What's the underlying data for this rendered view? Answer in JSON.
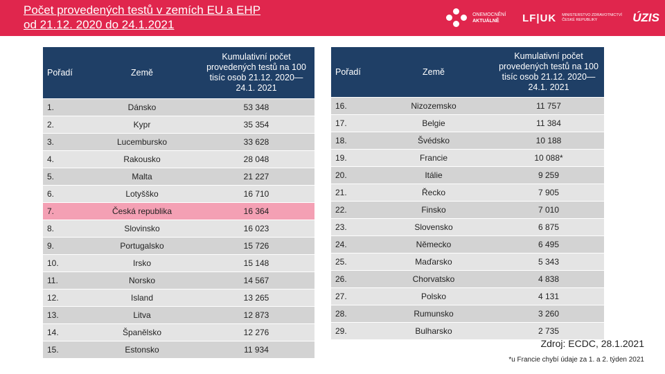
{
  "header": {
    "title_line1": "Počet provedených testů v zemích EU a EHP",
    "title_line2": "od 21.12. 2020 do 24.1.2021",
    "logos": {
      "logo1_line1": "ONEMOCNĚNÍ",
      "logo1_line2": "AKTUÁLNĚ",
      "logo2": "LF|UK",
      "logo3_line1": "MINISTERSTVO ZDRAVOTNICTVÍ",
      "logo3_line2": "ČESKÉ REPUBLIKY",
      "logo4": "ÚZIS"
    }
  },
  "table": {
    "headers": {
      "rank": "Pořadí",
      "country": "Země",
      "value": "Kumulativní počet provedených testů na 100 tisíc osob 21.12. 2020—24.1. 2021"
    },
    "left_rows": [
      {
        "rank": "1.",
        "country": "Dánsko",
        "value": "53 348"
      },
      {
        "rank": "2.",
        "country": "Kypr",
        "value": "35 354"
      },
      {
        "rank": "3.",
        "country": "Lucembursko",
        "value": "33 628"
      },
      {
        "rank": "4.",
        "country": "Rakousko",
        "value": "28 048"
      },
      {
        "rank": "5.",
        "country": "Malta",
        "value": "21 227"
      },
      {
        "rank": "6.",
        "country": "Lotyšško",
        "value": "16 710"
      },
      {
        "rank": "7.",
        "country": "Česká republika",
        "value": "16 364"
      },
      {
        "rank": "8.",
        "country": "Slovinsko",
        "value": "16 023"
      },
      {
        "rank": "9.",
        "country": "Portugalsko",
        "value": "15 726"
      },
      {
        "rank": "10.",
        "country": "Irsko",
        "value": "15 148"
      },
      {
        "rank": "11.",
        "country": "Norsko",
        "value": "14 567"
      },
      {
        "rank": "12.",
        "country": "Island",
        "value": "13 265"
      },
      {
        "rank": "13.",
        "country": "Litva",
        "value": "12 873"
      },
      {
        "rank": "14.",
        "country": "Španělsko",
        "value": "12 276"
      },
      {
        "rank": "15.",
        "country": "Estonsko",
        "value": "11 934"
      }
    ],
    "right_rows": [
      {
        "rank": "16.",
        "country": "Nizozemsko",
        "value": "11 757"
      },
      {
        "rank": "17.",
        "country": "Belgie",
        "value": "11 384"
      },
      {
        "rank": "18.",
        "country": "Švédsko",
        "value": "10 188"
      },
      {
        "rank": "19.",
        "country": "Francie",
        "value": "10 088*"
      },
      {
        "rank": "20.",
        "country": "Itálie",
        "value": "9 259"
      },
      {
        "rank": "21.",
        "country": "Řecko",
        "value": "7 905"
      },
      {
        "rank": "22.",
        "country": "Finsko",
        "value": "7 010"
      },
      {
        "rank": "23.",
        "country": "Slovensko",
        "value": "6 875"
      },
      {
        "rank": "24.",
        "country": "Německo",
        "value": "6 495"
      },
      {
        "rank": "25.",
        "country": "Maďarsko",
        "value": "5 343"
      },
      {
        "rank": "26.",
        "country": "Chorvatsko",
        "value": "4 838"
      },
      {
        "rank": "27.",
        "country": "Polsko",
        "value": "4 131"
      },
      {
        "rank": "28.",
        "country": "Rumunsko",
        "value": "3 260"
      },
      {
        "rank": "29.",
        "country": "Bulharsko",
        "value": "2 735"
      }
    ],
    "highlighted_country": "Česká republika",
    "highlight_color": "#f4a0b4",
    "header_color": "#1f3f66"
  },
  "source": "Zdroj: ECDC, 28.1.2021",
  "footnote": "*u Francie chybí údaje za 1. a 2. týden 2021",
  "colors": {
    "brand": "#e0264d"
  }
}
